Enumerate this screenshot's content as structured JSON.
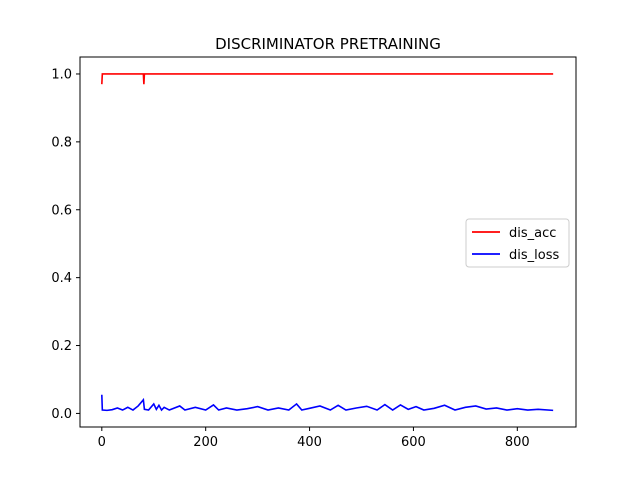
{
  "chart_data": {
    "type": "line",
    "title": "DISCRIMINATOR PRETRAINING",
    "xlabel": "",
    "ylabel": "",
    "xlim": [
      -42,
      913
    ],
    "ylim": [
      -0.04,
      1.05
    ],
    "xticks": [
      0,
      200,
      400,
      600,
      800
    ],
    "yticks": [
      0.0,
      0.2,
      0.4,
      0.6,
      0.8,
      1.0
    ],
    "xtick_labels": [
      "0",
      "200",
      "400",
      "600",
      "800"
    ],
    "ytick_labels": [
      "0.0",
      "0.2",
      "0.4",
      "0.6",
      "0.8",
      "1.0"
    ],
    "grid": false,
    "legend_position": "center-right",
    "series": [
      {
        "name": "dis_acc",
        "color": "#ff0000",
        "points": [
          [
            0,
            0.97
          ],
          [
            1,
            1.0
          ],
          [
            80,
            1.0
          ],
          [
            81,
            0.97
          ],
          [
            82,
            1.0
          ],
          [
            869,
            1.0
          ]
        ]
      },
      {
        "name": "dis_loss",
        "color": "#0000ff",
        "points": [
          [
            0,
            0.055
          ],
          [
            1,
            0.01
          ],
          [
            10,
            0.009
          ],
          [
            20,
            0.011
          ],
          [
            30,
            0.016
          ],
          [
            40,
            0.01
          ],
          [
            50,
            0.018
          ],
          [
            60,
            0.01
          ],
          [
            70,
            0.022
          ],
          [
            80,
            0.04
          ],
          [
            82,
            0.012
          ],
          [
            90,
            0.01
          ],
          [
            100,
            0.028
          ],
          [
            105,
            0.012
          ],
          [
            110,
            0.024
          ],
          [
            115,
            0.01
          ],
          [
            120,
            0.018
          ],
          [
            130,
            0.01
          ],
          [
            150,
            0.022
          ],
          [
            160,
            0.01
          ],
          [
            180,
            0.018
          ],
          [
            200,
            0.01
          ],
          [
            215,
            0.025
          ],
          [
            225,
            0.01
          ],
          [
            240,
            0.016
          ],
          [
            260,
            0.01
          ],
          [
            280,
            0.014
          ],
          [
            300,
            0.02
          ],
          [
            320,
            0.01
          ],
          [
            340,
            0.016
          ],
          [
            360,
            0.01
          ],
          [
            375,
            0.028
          ],
          [
            385,
            0.01
          ],
          [
            400,
            0.015
          ],
          [
            420,
            0.022
          ],
          [
            440,
            0.01
          ],
          [
            455,
            0.024
          ],
          [
            470,
            0.01
          ],
          [
            490,
            0.016
          ],
          [
            510,
            0.021
          ],
          [
            530,
            0.01
          ],
          [
            545,
            0.026
          ],
          [
            560,
            0.01
          ],
          [
            575,
            0.025
          ],
          [
            590,
            0.012
          ],
          [
            605,
            0.02
          ],
          [
            620,
            0.01
          ],
          [
            640,
            0.015
          ],
          [
            660,
            0.024
          ],
          [
            680,
            0.01
          ],
          [
            700,
            0.018
          ],
          [
            720,
            0.022
          ],
          [
            740,
            0.013
          ],
          [
            760,
            0.016
          ],
          [
            780,
            0.01
          ],
          [
            800,
            0.014
          ],
          [
            820,
            0.01
          ],
          [
            840,
            0.012
          ],
          [
            869,
            0.009
          ]
        ]
      }
    ]
  }
}
